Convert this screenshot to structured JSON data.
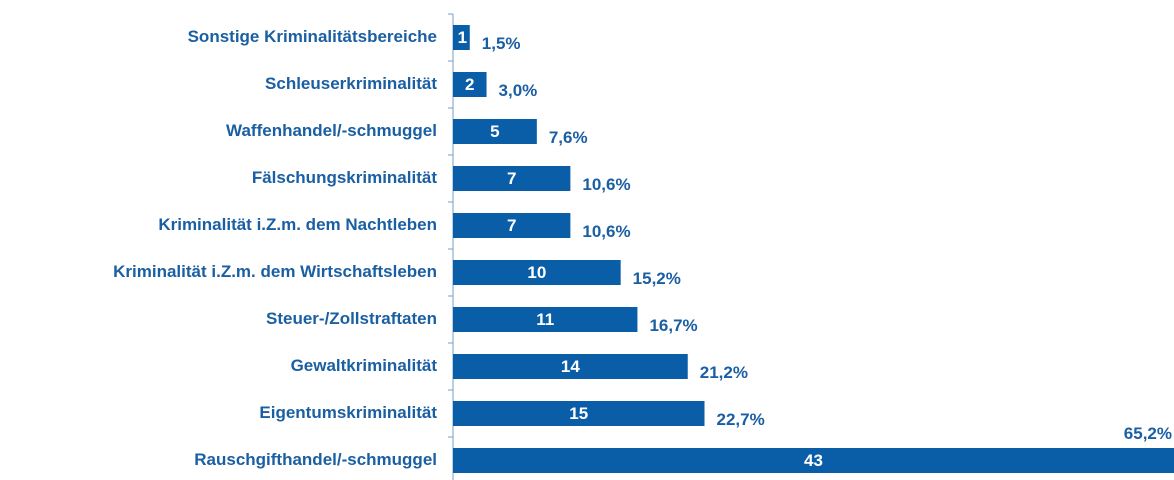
{
  "chart_data": {
    "type": "bar",
    "orientation": "horizontal",
    "categories": [
      "Sonstige Kriminalitätsbereiche",
      "Schleuserkriminalität",
      "Waffenhandel/-schmuggel",
      "Fälschungskriminalität",
      "Kriminalität i.Z.m. dem Nachtleben",
      "Kriminalität i.Z.m. dem Wirtschaftsleben",
      "Steuer-/Zollstraftaten",
      "Gewaltkriminalität",
      "Eigentumskriminalität",
      "Rauschgifthandel/-schmuggel"
    ],
    "values": [
      1,
      2,
      5,
      7,
      7,
      10,
      11,
      14,
      15,
      43
    ],
    "percent_labels": [
      "1,5%",
      "3,0%",
      "7,6%",
      "10,6%",
      "10,6%",
      "15,2%",
      "16,7%",
      "21,2%",
      "22,7%",
      "65,2%"
    ],
    "color": "#0a5ea8"
  }
}
